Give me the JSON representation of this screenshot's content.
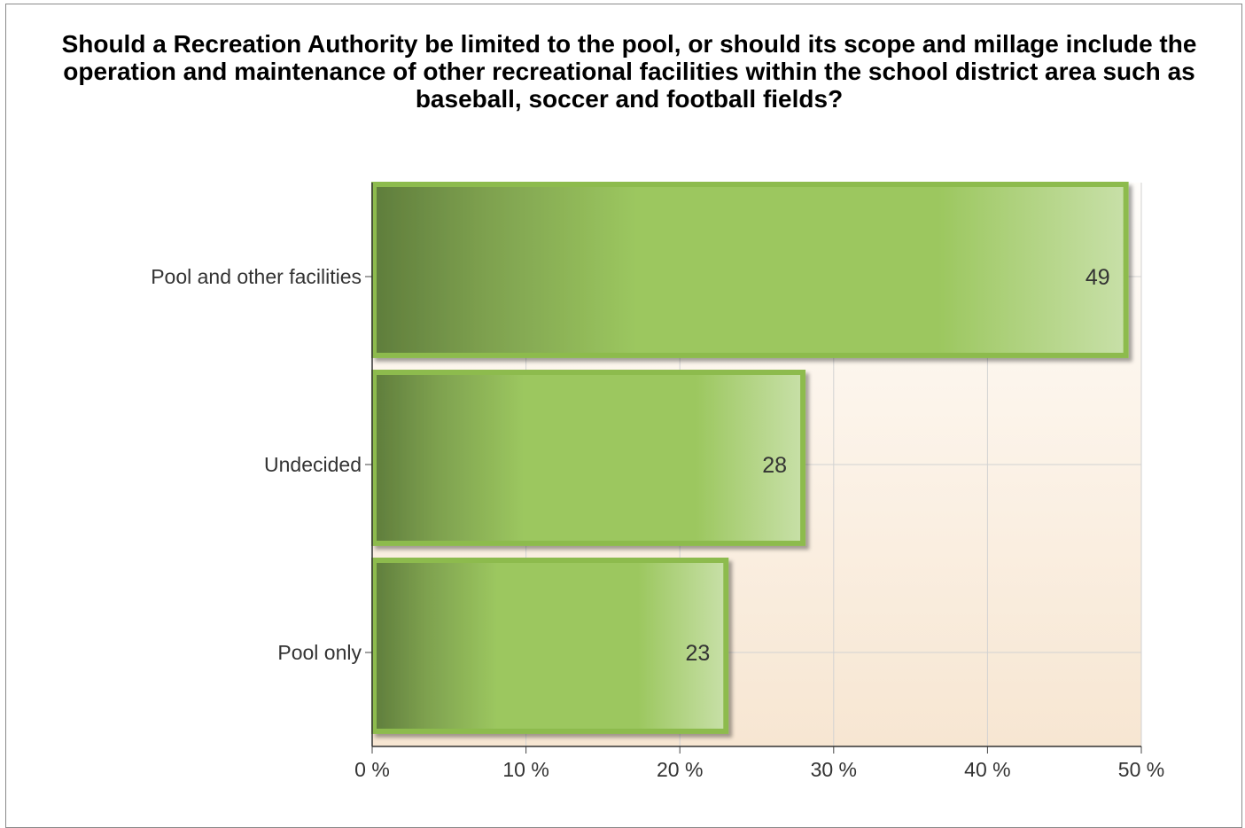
{
  "chart_data": {
    "type": "bar",
    "orientation": "horizontal",
    "title": "Should a Recreation Authority be limited to the pool, or should its scope and millage include the operation and maintenance of other recreational facilities within the school district area such as baseball, soccer and football fields?",
    "categories": [
      "Pool and other facilities",
      "Undecided",
      "Pool only"
    ],
    "values": [
      49,
      28,
      23
    ],
    "data_labels": [
      "49",
      "28",
      "23"
    ],
    "xlabel": "",
    "ylabel": "",
    "xlim": [
      0,
      50
    ],
    "x_ticks": [
      0,
      10,
      20,
      30,
      40,
      50
    ],
    "x_tick_labels": [
      "0 %",
      "10 %",
      "20 %",
      "30 %",
      "40 %",
      "50 %"
    ],
    "grid": true,
    "legend": "none",
    "colors": {
      "bar_dark": "#5f7d3c",
      "bar_mid": "#9cc75f",
      "bar_light": "#c8e0a8",
      "bar_border": "#8dbb4e",
      "plot_bg_top": "#fffdfa",
      "plot_bg_bottom": "#f7e6d2",
      "grid": "#d2d2d2"
    }
  }
}
